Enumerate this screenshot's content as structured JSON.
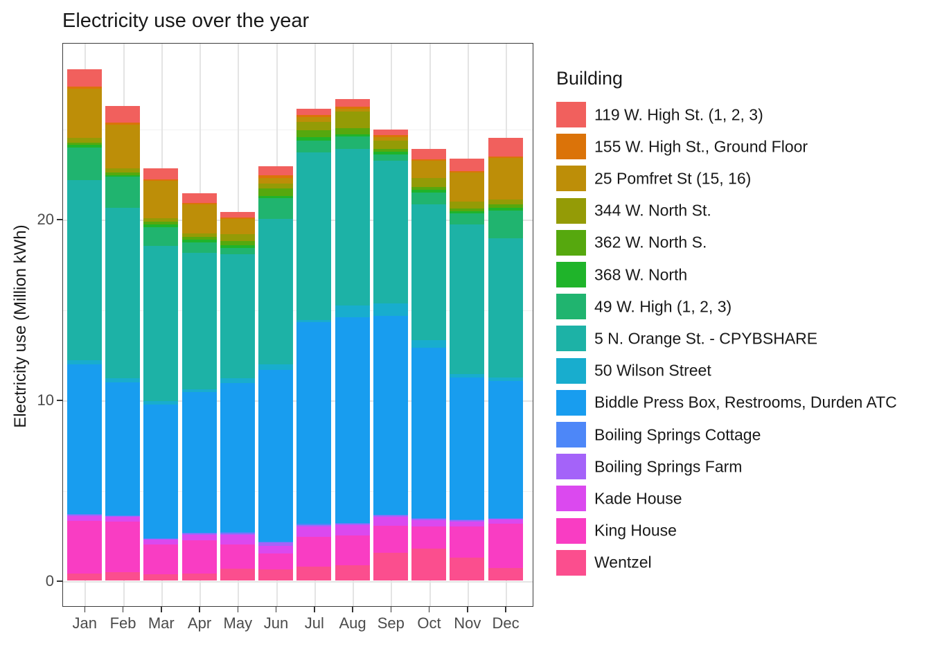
{
  "title": "Electricity use over the year",
  "chart_data": {
    "type": "bar",
    "stacked": true,
    "title": "Electricity use over the year",
    "xlabel": "",
    "ylabel": "Electricity use (Million kWh)",
    "legend_title": "Building",
    "legend_position": "right",
    "grid": true,
    "y_ticks": [
      0,
      10,
      20
    ],
    "y_minor_ticks": [
      5,
      15,
      25
    ],
    "ylim": [
      -1.4,
      29.8
    ],
    "categories": [
      "Jan",
      "Feb",
      "Mar",
      "Apr",
      "May",
      "Jun",
      "Jul",
      "Aug",
      "Sep",
      "Oct",
      "Nov",
      "Dec"
    ],
    "series": [
      {
        "name": "119 W. High St. (1, 2, 3)",
        "color": "#F1605D",
        "values": [
          0.95,
          0.93,
          0.61,
          0.55,
          0.3,
          0.5,
          0.35,
          0.42,
          0.3,
          0.57,
          0.68,
          1.02
        ]
      },
      {
        "name": "155 W. High St., Ground Floor",
        "color": "#DB7309",
        "values": [
          0.1,
          0.1,
          0.08,
          0.08,
          0.08,
          0.15,
          0.13,
          0.13,
          0.12,
          0.09,
          0.1,
          0.09
        ]
      },
      {
        "name": "25 Pomfret St (15, 16)",
        "color": "#BD8E08",
        "values": [
          2.75,
          2.4,
          2.1,
          1.6,
          0.85,
          0.3,
          0.25,
          0.15,
          0.2,
          0.97,
          1.62,
          2.3
        ]
      },
      {
        "name": "344 W. North St.",
        "color": "#949B06",
        "values": [
          0.25,
          0.26,
          0.18,
          0.19,
          0.38,
          0.25,
          0.45,
          0.92,
          0.45,
          0.47,
          0.36,
          0.28
        ]
      },
      {
        "name": "362 W. North S.",
        "color": "#56A80E",
        "values": [
          0.13,
          0.12,
          0.13,
          0.16,
          0.22,
          0.42,
          0.41,
          0.33,
          0.15,
          0.17,
          0.15,
          0.19
        ]
      },
      {
        "name": "368 W. North",
        "color": "#1FB42A",
        "values": [
          0.15,
          0.11,
          0.17,
          0.16,
          0.17,
          0.15,
          0.17,
          0.13,
          0.15,
          0.15,
          0.13,
          0.13
        ]
      },
      {
        "name": "49 W. High (1, 2, 3)",
        "color": "#20B46F",
        "values": [
          1.8,
          1.7,
          1.02,
          0.55,
          0.35,
          1.13,
          0.68,
          0.69,
          0.35,
          0.64,
          0.61,
          1.54
        ]
      },
      {
        "name": "5 N. Orange St. - CPYBSHARE",
        "color": "#1DB2A6",
        "values": [
          9.95,
          9.45,
          8.6,
          7.55,
          6.87,
          8.03,
          9.27,
          8.66,
          7.9,
          7.54,
          8.26,
          7.71
        ]
      },
      {
        "name": "50 Wilson Street",
        "color": "#18ADCE",
        "values": [
          0.25,
          0.23,
          0.19,
          0.15,
          0.26,
          0.33,
          0.11,
          0.67,
          0.68,
          0.42,
          0.19,
          0.17
        ]
      },
      {
        "name": "Biddle Press Box, Restrooms, Durden ATC",
        "color": "#189DEF",
        "values": [
          8.28,
          7.34,
          7.38,
          7.8,
          8.24,
          9.48,
          11.15,
          11.35,
          11.0,
          9.41,
          7.88,
          7.59
        ]
      },
      {
        "name": "Boiling Springs Cottage",
        "color": "#4D87F8",
        "values": [
          0.04,
          0.04,
          0.04,
          0.04,
          0.05,
          0.05,
          0.05,
          0.05,
          0.05,
          0.04,
          0.04,
          0.04
        ]
      },
      {
        "name": "Boiling Springs Farm",
        "color": "#A463F9",
        "values": [
          0.06,
          0.05,
          0.05,
          0.06,
          0.1,
          0.2,
          0.08,
          0.08,
          0.08,
          0.06,
          0.05,
          0.06
        ]
      },
      {
        "name": "Kade House",
        "color": "#DB49EF",
        "values": [
          0.28,
          0.24,
          0.28,
          0.29,
          0.51,
          0.41,
          0.57,
          0.57,
          0.51,
          0.38,
          0.29,
          0.2
        ]
      },
      {
        "name": "King House",
        "color": "#F93DC3",
        "values": [
          2.9,
          2.82,
          1.63,
          1.84,
          1.37,
          0.9,
          1.66,
          1.66,
          1.47,
          1.21,
          1.7,
          2.48
        ]
      },
      {
        "name": "Wentzel",
        "color": "#FB4E8E",
        "values": [
          0.4,
          0.47,
          0.37,
          0.42,
          0.66,
          0.62,
          0.79,
          0.85,
          1.56,
          1.78,
          1.3,
          0.7
        ]
      }
    ]
  }
}
